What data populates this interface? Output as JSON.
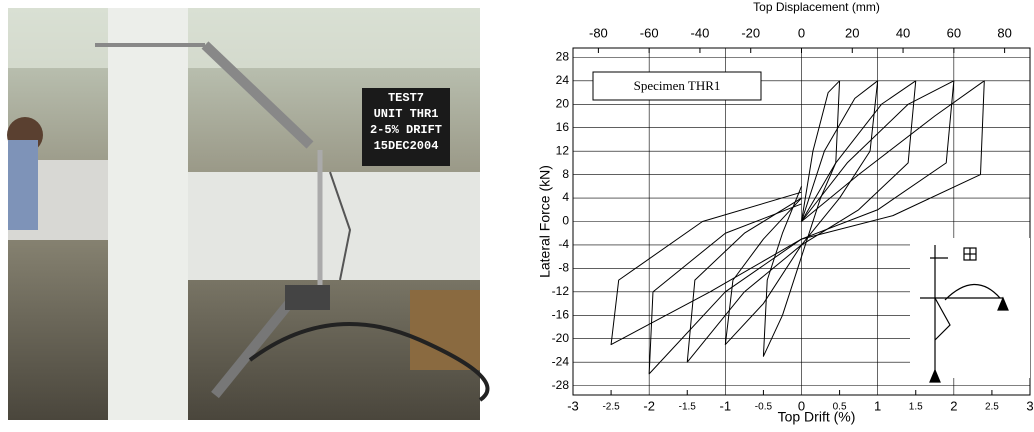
{
  "photo": {
    "sign_lines": [
      "TEST7",
      "UNIT THR1",
      "2-5% DRIFT",
      "15DEC2004"
    ]
  },
  "chart_data": {
    "type": "line",
    "x_label": "Top Drift (%)",
    "x2_label": "Top Displacement (mm)",
    "y_label": "Lateral Force (kN)",
    "annotation": "Specimen THR1",
    "xlim": [
      -3,
      3
    ],
    "xticks": [
      -3,
      -2.5,
      -2,
      -1.5,
      -1,
      -0.5,
      0,
      0.5,
      1,
      1.5,
      2,
      2.5,
      3
    ],
    "x2lim": [
      -90,
      90
    ],
    "x2ticks": [
      -80,
      -60,
      -40,
      -20,
      0,
      20,
      40,
      60,
      80
    ],
    "ylim": [
      -29.6,
      29.6
    ],
    "yticks": [
      -28,
      -24,
      -20,
      -16,
      -12,
      -8,
      -4,
      0,
      4,
      8,
      12,
      16,
      20,
      24,
      28
    ],
    "grid": true,
    "series": [
      {
        "color": "#000000",
        "x": [
          0,
          0.15,
          0.35,
          0.5,
          0.45,
          0.25,
          0,
          -0.25,
          -0.5,
          -0.45,
          -0.25,
          0
        ],
        "values": [
          0,
          12,
          22,
          24,
          10,
          4,
          -6,
          -16,
          -23,
          -10,
          -2,
          6
        ]
      },
      {
        "color": "#000000",
        "x": [
          0,
          0.3,
          0.7,
          1,
          0.9,
          0.5,
          0,
          -0.5,
          -1,
          -0.9,
          -0.5,
          0
        ],
        "values": [
          0,
          12,
          21,
          24,
          12,
          4,
          -4,
          -14,
          -21,
          -10,
          -3,
          4
        ]
      },
      {
        "color": "#000000",
        "x": [
          0,
          0.45,
          1.05,
          1.5,
          1.4,
          0.75,
          0,
          -0.75,
          -1.5,
          -1.4,
          -0.75,
          0
        ],
        "values": [
          0,
          10,
          20,
          24,
          10,
          2,
          -4,
          -12,
          -24,
          -10,
          -2,
          4
        ]
      },
      {
        "color": "#000000",
        "x": [
          0,
          0.6,
          1.4,
          2,
          1.9,
          1,
          0,
          -1,
          -2,
          -1.95,
          -1,
          0
        ],
        "values": [
          0,
          10,
          20,
          24,
          10,
          2,
          -3,
          -12,
          -26,
          -12,
          -2,
          3
        ]
      },
      {
        "color": "#000000",
        "x": [
          0,
          0.75,
          1.75,
          2.4,
          2.35,
          1.2,
          0,
          -1.2,
          -2.5,
          -2.4,
          -1.3,
          0
        ],
        "values": [
          0,
          8,
          18,
          24,
          8,
          1,
          -3,
          -12,
          -21,
          -10,
          0,
          5
        ]
      }
    ]
  }
}
